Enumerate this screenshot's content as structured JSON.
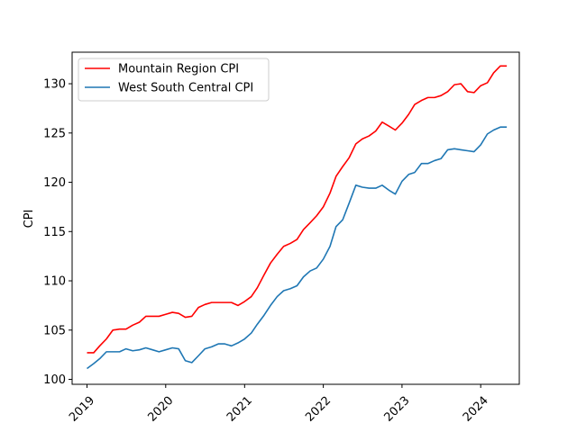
{
  "chart_data": {
    "type": "line",
    "title": "",
    "xlabel": "",
    "ylabel": "CPI",
    "xlim": [
      "2018-10-24",
      "2024-06-28"
    ],
    "ylim": [
      99.5,
      133.2
    ],
    "grid": false,
    "legend_position": "upper-left",
    "x_ticks": [
      "2019",
      "2020",
      "2021",
      "2022",
      "2023",
      "2024"
    ],
    "y_ticks": [
      100,
      105,
      110,
      115,
      120,
      125,
      130
    ],
    "x": [
      "2019-01",
      "2019-02",
      "2019-03",
      "2019-04",
      "2019-05",
      "2019-06",
      "2019-07",
      "2019-08",
      "2019-09",
      "2019-10",
      "2019-11",
      "2019-12",
      "2020-01",
      "2020-02",
      "2020-03",
      "2020-04",
      "2020-05",
      "2020-06",
      "2020-07",
      "2020-08",
      "2020-09",
      "2020-10",
      "2020-11",
      "2020-12",
      "2021-01",
      "2021-02",
      "2021-03",
      "2021-04",
      "2021-05",
      "2021-06",
      "2021-07",
      "2021-08",
      "2021-09",
      "2021-10",
      "2021-11",
      "2021-12",
      "2022-01",
      "2022-02",
      "2022-03",
      "2022-04",
      "2022-05",
      "2022-06",
      "2022-07",
      "2022-08",
      "2022-09",
      "2022-10",
      "2022-11",
      "2022-12",
      "2023-01",
      "2023-02",
      "2023-03",
      "2023-04",
      "2023-05",
      "2023-06",
      "2023-07",
      "2023-08",
      "2023-09",
      "2023-10",
      "2023-11",
      "2023-12",
      "2024-01",
      "2024-02",
      "2024-03",
      "2024-04",
      "2024-05"
    ],
    "series": [
      {
        "name": "Mountain Region CPI",
        "color": "#ff0000",
        "values": [
          102.7,
          102.7,
          103.4,
          104.1,
          105.0,
          105.1,
          105.1,
          105.5,
          105.8,
          106.4,
          106.4,
          106.4,
          106.6,
          106.8,
          106.7,
          106.3,
          106.4,
          107.3,
          107.6,
          107.8,
          107.8,
          107.8,
          107.8,
          107.5,
          107.9,
          108.4,
          109.3,
          110.6,
          111.8,
          112.7,
          113.5,
          113.8,
          114.2,
          115.2,
          115.9,
          116.6,
          117.5,
          118.9,
          120.6,
          121.6,
          122.5,
          123.9,
          124.4,
          124.7,
          125.2,
          126.1,
          125.7,
          125.3,
          126.0,
          126.9,
          127.9,
          128.3,
          128.6,
          128.6,
          128.8,
          129.2,
          129.9,
          130.0,
          129.2,
          129.1,
          129.8,
          130.1,
          131.1,
          131.8,
          131.8
        ]
      },
      {
        "name": "West South Central CPI",
        "color": "#1f77b4",
        "values": [
          101.1,
          101.6,
          102.1,
          102.8,
          102.8,
          102.8,
          103.1,
          102.9,
          103.0,
          103.2,
          103.0,
          102.8,
          103.0,
          103.2,
          103.1,
          101.9,
          101.7,
          102.4,
          103.1,
          103.3,
          103.6,
          103.6,
          103.4,
          103.7,
          104.1,
          104.7,
          105.6,
          106.5,
          107.5,
          108.4,
          109.0,
          109.2,
          109.5,
          110.4,
          111.0,
          111.3,
          112.2,
          113.5,
          115.5,
          116.2,
          117.9,
          119.7,
          119.5,
          119.4,
          119.4,
          119.7,
          119.2,
          118.8,
          120.1,
          120.8,
          121.0,
          121.9,
          121.9,
          122.2,
          122.4,
          123.3,
          123.4,
          123.3,
          123.2,
          123.1,
          123.8,
          124.9,
          125.3,
          125.6,
          125.6
        ]
      }
    ]
  }
}
